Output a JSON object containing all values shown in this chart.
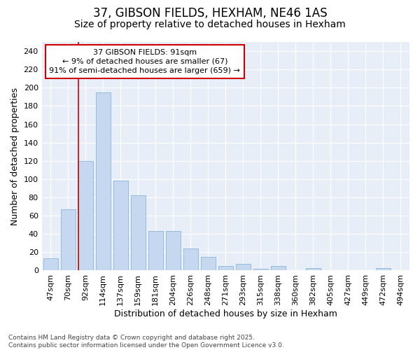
{
  "title_line1": "37, GIBSON FIELDS, HEXHAM, NE46 1AS",
  "title_line2": "Size of property relative to detached houses in Hexham",
  "xlabel": "Distribution of detached houses by size in Hexham",
  "ylabel": "Number of detached properties",
  "categories": [
    "47sqm",
    "70sqm",
    "92sqm",
    "114sqm",
    "137sqm",
    "159sqm",
    "181sqm",
    "204sqm",
    "226sqm",
    "248sqm",
    "271sqm",
    "293sqm",
    "315sqm",
    "338sqm",
    "360sqm",
    "382sqm",
    "405sqm",
    "427sqm",
    "449sqm",
    "472sqm",
    "494sqm"
  ],
  "values": [
    13,
    67,
    120,
    195,
    98,
    82,
    43,
    43,
    24,
    15,
    5,
    7,
    2,
    5,
    0,
    3,
    0,
    0,
    0,
    3,
    0
  ],
  "bar_color": "#c5d8f0",
  "bar_edgecolor": "#7aadd4",
  "background_color": "#e8eef8",
  "grid_color": "#ffffff",
  "fig_background": "#ffffff",
  "vline_color": "#cc0000",
  "annotation_text": "37 GIBSON FIELDS: 91sqm\n← 9% of detached houses are smaller (67)\n91% of semi-detached houses are larger (659) →",
  "annotation_box_facecolor": "#ffffff",
  "annotation_box_edgecolor": "#cc0000",
  "ylim": [
    0,
    250
  ],
  "yticks": [
    0,
    20,
    40,
    60,
    80,
    100,
    120,
    140,
    160,
    180,
    200,
    220,
    240
  ],
  "footer_text": "Contains HM Land Registry data © Crown copyright and database right 2025.\nContains public sector information licensed under the Open Government Licence v3.0.",
  "title_fontsize": 12,
  "subtitle_fontsize": 10,
  "axis_label_fontsize": 9,
  "tick_fontsize": 8,
  "annotation_fontsize": 8,
  "footer_fontsize": 6.5
}
